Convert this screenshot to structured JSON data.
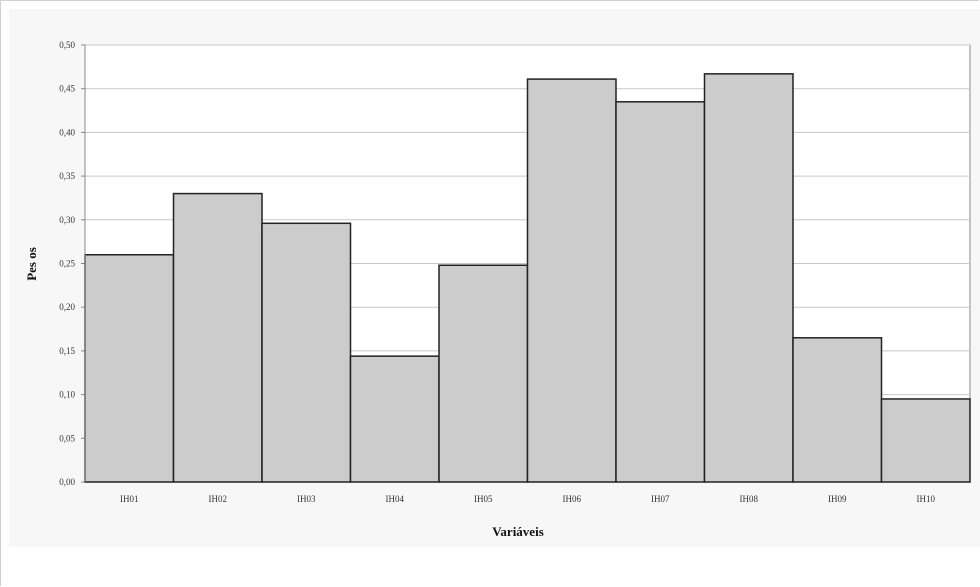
{
  "chart_data": {
    "type": "bar",
    "categories": [
      "IH01",
      "IH02",
      "IH03",
      "IH04",
      "IH05",
      "IH06",
      "IH07",
      "IH08",
      "IH09",
      "IH10"
    ],
    "values": [
      0.26,
      0.33,
      0.296,
      0.144,
      0.248,
      0.461,
      0.435,
      0.467,
      0.165,
      0.095
    ],
    "title": "",
    "xlabel": "Variáveis",
    "ylabel": "Pes os",
    "ylim": [
      0,
      0.5
    ],
    "yticks": [
      "0,00",
      "0,05",
      "0,10",
      "0,15",
      "0,20",
      "0,25",
      "0,30",
      "0,35",
      "0,40",
      "0,45",
      "0,50"
    ],
    "grid": true,
    "legend": "none",
    "colors": {
      "bar_fill": "#cccccc",
      "bar_stroke": "#222222",
      "gridline": "#c8c8c8",
      "plot_background": "#ffffff"
    }
  }
}
